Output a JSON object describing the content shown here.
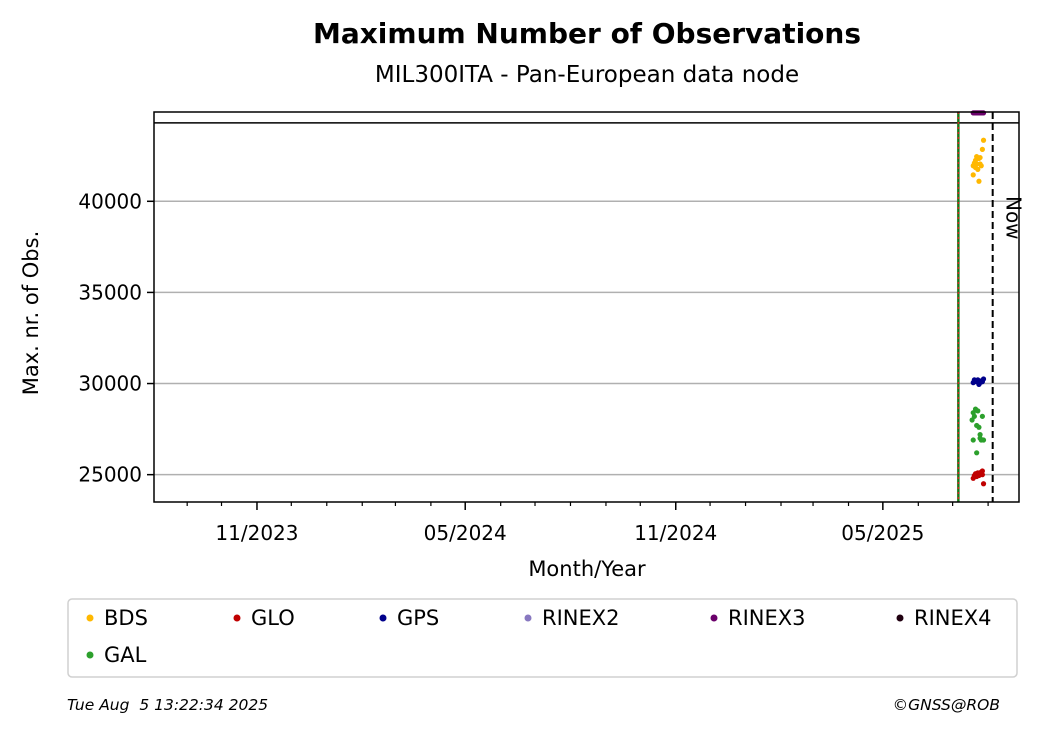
{
  "chart_data": {
    "type": "scatter",
    "title": "Maximum Number of Observations",
    "subtitle": "MIL300ITA - Pan-European data node",
    "xlabel": "Month/Year",
    "ylabel": "Max. nr. of Obs.",
    "x_ticks": [
      "11/2023",
      "05/2024",
      "11/2024",
      "05/2025"
    ],
    "y_ticks": [
      25000,
      30000,
      35000,
      40000
    ],
    "ylim": [
      23500,
      44900
    ],
    "x_range": [
      "2023-08-03",
      "2025-08-28"
    ],
    "grid": "horizontal",
    "marker_line_y": 44300,
    "vlines": [
      {
        "date": "2025-07-06",
        "style": "solid-green-red-dotted"
      },
      {
        "date": "2025-08-05",
        "label": "Now",
        "style": "dashed-black"
      }
    ],
    "legend_placement": "below",
    "series": [
      {
        "name": "BDS",
        "color": "#ffb800",
        "points": [
          [
            "2025-07-19",
            41450
          ],
          [
            "2025-07-19",
            41950
          ],
          [
            "2025-07-20",
            42100
          ],
          [
            "2025-07-21",
            42250
          ],
          [
            "2025-07-21",
            41850
          ],
          [
            "2025-07-22",
            42450
          ],
          [
            "2025-07-22",
            42050
          ],
          [
            "2025-07-23",
            41750
          ],
          [
            "2025-07-24",
            41100
          ],
          [
            "2025-07-24",
            42350
          ],
          [
            "2025-07-25",
            42400
          ],
          [
            "2025-07-25",
            42050
          ],
          [
            "2025-07-26",
            41950
          ],
          [
            "2025-07-27",
            42850
          ],
          [
            "2025-07-28",
            43350
          ]
        ]
      },
      {
        "name": "GLO",
        "color": "#c00000",
        "points": [
          [
            "2025-07-19",
            24800
          ],
          [
            "2025-07-20",
            24950
          ],
          [
            "2025-07-21",
            25050
          ],
          [
            "2025-07-22",
            24900
          ],
          [
            "2025-07-23",
            25100
          ],
          [
            "2025-07-24",
            24950
          ],
          [
            "2025-07-25",
            25050
          ],
          [
            "2025-07-26",
            25150
          ],
          [
            "2025-07-27",
            25000
          ],
          [
            "2025-07-27",
            25200
          ],
          [
            "2025-07-28",
            24500
          ]
        ]
      },
      {
        "name": "GPS",
        "color": "#00008b",
        "points": [
          [
            "2025-07-19",
            30050
          ],
          [
            "2025-07-20",
            30200
          ],
          [
            "2025-07-21",
            30150
          ],
          [
            "2025-07-22",
            30100
          ],
          [
            "2025-07-23",
            30200
          ],
          [
            "2025-07-24",
            29950
          ],
          [
            "2025-07-25",
            30050
          ],
          [
            "2025-07-26",
            30150
          ],
          [
            "2025-07-27",
            30100
          ],
          [
            "2025-07-28",
            30250
          ]
        ]
      },
      {
        "name": "RINEX2",
        "color": "#8878c0",
        "points": []
      },
      {
        "name": "RINEX3",
        "color": "#6a006a",
        "points": [
          [
            "2025-07-19",
            44850
          ],
          [
            "2025-07-20",
            44850
          ],
          [
            "2025-07-21",
            44850
          ],
          [
            "2025-07-22",
            44850
          ],
          [
            "2025-07-23",
            44850
          ],
          [
            "2025-07-24",
            44850
          ],
          [
            "2025-07-25",
            44850
          ],
          [
            "2025-07-26",
            44850
          ],
          [
            "2025-07-27",
            44850
          ],
          [
            "2025-07-28",
            44850
          ]
        ]
      },
      {
        "name": "RINEX4",
        "color": "#200010",
        "points": []
      },
      {
        "name": "GAL",
        "color": "#2ca02c",
        "points": [
          [
            "2025-07-18",
            28000
          ],
          [
            "2025-07-19",
            28400
          ],
          [
            "2025-07-19",
            26900
          ],
          [
            "2025-07-20",
            28200
          ],
          [
            "2025-07-21",
            28600
          ],
          [
            "2025-07-22",
            26200
          ],
          [
            "2025-07-22",
            27700
          ],
          [
            "2025-07-23",
            28500
          ],
          [
            "2025-07-24",
            27600
          ],
          [
            "2025-07-25",
            27200
          ],
          [
            "2025-07-25",
            27000
          ],
          [
            "2025-07-26",
            26900
          ],
          [
            "2025-07-27",
            28200
          ],
          [
            "2025-07-28",
            26900
          ]
        ]
      }
    ]
  },
  "footer": {
    "timestamp": "Tue Aug  5 13:22:34 2025",
    "credit": "©GNSS@ROB"
  }
}
